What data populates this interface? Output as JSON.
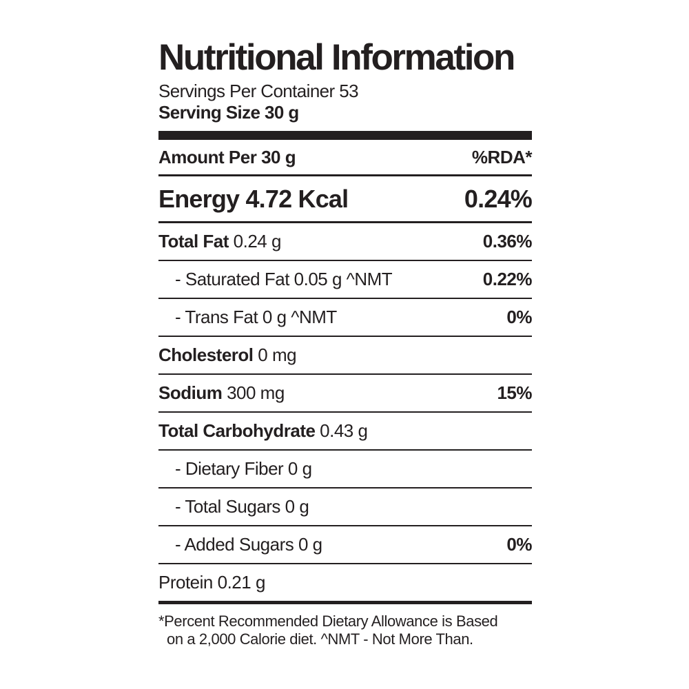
{
  "label": {
    "title": "Nutritional Information",
    "servings_per_container": "Servings Per Container 53",
    "serving_size": "Serving Size 30 g",
    "header": {
      "amount_label": "Amount Per 30 g",
      "rda_label": "%RDA*"
    },
    "energy": {
      "label": "Energy 4.72 Kcal",
      "rda": "0.24%"
    },
    "rows": [
      {
        "name": "Total Fat",
        "amount": " 0.24 g",
        "rda": "0.36%"
      },
      {
        "name": "- Saturated Fat",
        "amount": " 0.05 g  ^NMT",
        "rda": "0.22%"
      },
      {
        "name": "- Trans Fat",
        "amount": " 0 g  ^NMT",
        "rda": "0%"
      },
      {
        "name": "Cholesterol",
        "amount": " 0 mg",
        "rda": ""
      },
      {
        "name": "Sodium",
        "amount": " 300 mg",
        "rda": "15%"
      },
      {
        "name": "Total Carbohydrate",
        "amount": " 0.43 g",
        "rda": ""
      },
      {
        "name": "- Dietary Fiber",
        "amount": " 0 g",
        "rda": ""
      },
      {
        "name": "- Total Sugars",
        "amount": " 0 g",
        "rda": ""
      },
      {
        "name": "- Added Sugars",
        "amount": " 0 g",
        "rda": "0%"
      },
      {
        "name": "Protein",
        "amount": " 0.21 g",
        "rda": ""
      }
    ],
    "footnote": {
      "line1": "*Percent Recommended Dietary Allowance is Based",
      "line2": "on a 2,000 Calorie diet.  ^NMT - Not More Than."
    }
  }
}
